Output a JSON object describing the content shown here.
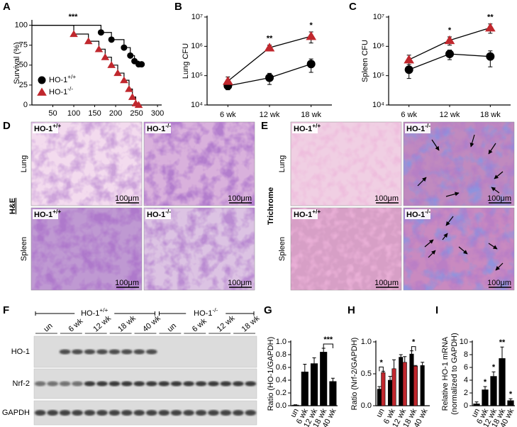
{
  "panel_labels": [
    "A",
    "B",
    "C",
    "D",
    "E",
    "F",
    "G",
    "H",
    "I"
  ],
  "chart_data": [
    {
      "type": "step",
      "ylabel": "Survival (%)",
      "annotation": "***",
      "xlim": [
        0,
        310
      ],
      "xticks": [
        50,
        100,
        150,
        200,
        250,
        300
      ],
      "ylim": [
        0,
        105
      ],
      "yticks": [
        0,
        25,
        50,
        75,
        100
      ],
      "series": [
        {
          "name": "HO-1+/+",
          "color": "#000000",
          "marker": "circle",
          "x": [
            0,
            165,
            190,
            220,
            235,
            245,
            255,
            262
          ],
          "values": [
            100,
            91,
            82,
            72,
            62,
            55,
            51,
            51
          ]
        },
        {
          "name": "HO-1-/-",
          "color": "#c0272d",
          "marker": "triangle",
          "x": [
            0,
            100,
            135,
            160,
            175,
            190,
            205,
            220,
            232,
            240,
            248,
            255
          ],
          "values": [
            100,
            89,
            80,
            70,
            60,
            50,
            40,
            31,
            20,
            10,
            2,
            0
          ]
        }
      ]
    },
    {
      "type": "line",
      "ylabel": "Lung CFU",
      "log": true,
      "categories": [
        "6 wk",
        "12 wk",
        "18 wk"
      ],
      "annotations": [
        null,
        "**",
        "*"
      ],
      "ylim": [
        10000,
        10000000
      ],
      "yticks": [
        {
          "value": 10000,
          "label": "10⁴"
        },
        {
          "value": 100000,
          "label": "10⁵"
        },
        {
          "value": 1000000,
          "label": "10⁶"
        },
        {
          "value": 10000000,
          "label": "10⁷"
        }
      ],
      "series": [
        {
          "color": "#000000",
          "marker": "circle",
          "values": [
            45000,
            85000,
            250000
          ],
          "errors": [
            12000,
            35000,
            120000
          ]
        },
        {
          "color": "#c0272d",
          "marker": "triangle",
          "values": [
            65000,
            900000,
            2200000
          ],
          "errors": [
            25000,
            200000,
            900000
          ]
        }
      ]
    },
    {
      "type": "line",
      "ylabel": "Spleen CFU",
      "log": true,
      "categories": [
        "6 wk",
        "12 wk",
        "18 wk"
      ],
      "annotations": [
        null,
        "*",
        "**"
      ],
      "ylim": [
        10000,
        10000000
      ],
      "yticks": [
        {
          "value": 10000,
          "label": "10⁴"
        },
        {
          "value": 100000,
          "label": "10⁵"
        },
        {
          "value": 1000000,
          "label": "10⁶"
        },
        {
          "value": 10000000,
          "label": "10⁷"
        }
      ],
      "series": [
        {
          "color": "#000000",
          "marker": "circle",
          "values": [
            160000,
            550000,
            450000
          ],
          "errors": [
            80000,
            200000,
            250000
          ]
        },
        {
          "color": "#c0272d",
          "marker": "triangle",
          "values": [
            350000,
            1600000,
            4300000
          ],
          "errors": [
            150000,
            500000,
            1500000
          ]
        }
      ]
    },
    {
      "type": "bar",
      "ylabel": "Ratio (HO-1/GAPDH)",
      "annotation_style": "bracket",
      "categories": [
        "un",
        "6 wk",
        "12 wk",
        "18 wk",
        "40 wk"
      ],
      "annotations": [
        null,
        null,
        null,
        "***",
        null
      ],
      "ylim": [
        0,
        1
      ],
      "yticks": [
        {
          "value": 0,
          "label": "0.0"
        },
        0.2,
        0.4,
        0.6,
        0.8,
        {
          "value": 1,
          "label": "1.0"
        }
      ],
      "series": [
        {
          "color": "#000000",
          "values": [
            0.01,
            0.53,
            0.66,
            0.84,
            0.38
          ],
          "errors": [
            0.005,
            0.12,
            0.09,
            0.06,
            0.05
          ]
        }
      ]
    },
    {
      "type": "bar",
      "ylabel": "Ratio (Nrf-2/GAPDH)",
      "annotation_style": "bracket",
      "categories": [
        "un",
        "6 wk",
        "12 wk",
        "18 wk",
        "40 wk"
      ],
      "annotations": [
        "*",
        null,
        null,
        "*",
        null
      ],
      "ylim": [
        0,
        1
      ],
      "yticks": [
        {
          "value": 0,
          "label": "0.0"
        },
        0.5,
        {
          "value": 1,
          "label": "1.0"
        }
      ],
      "series": [
        {
          "color": "#000000",
          "values": [
            0.26,
            0.4,
            0.76,
            0.81,
            0.63
          ],
          "errors": [
            0.04,
            0.06,
            0.04,
            0.05,
            0.05
          ]
        },
        {
          "color": "#c0272d",
          "values": [
            0.52,
            0.58,
            0.68,
            0.62,
            null
          ],
          "errors": [
            0.02,
            0.14,
            0.09,
            0.01,
            null
          ]
        }
      ]
    },
    {
      "type": "bar",
      "ylabel": "Relative HO-1 mRNA",
      "ysublabel": "(normalized to GAPDH)",
      "annotation_style": "star",
      "categories": [
        "un",
        "6 wk",
        "12 wk",
        "18 wk",
        "40 wk"
      ],
      "annotations": [
        null,
        "*",
        "*",
        "**",
        "*"
      ],
      "ylim": [
        0,
        10
      ],
      "yticks": [
        0,
        2,
        4,
        6,
        8,
        10
      ],
      "series": [
        {
          "color": "#000000",
          "values": [
            0.3,
            2.5,
            4.6,
            7.4,
            0.8
          ],
          "errors": [
            0.3,
            0.5,
            0.7,
            1.8,
            0.3
          ]
        }
      ]
    }
  ],
  "histology": [
    {
      "stain": "H&E",
      "rows": [
        "Lung",
        "Spleen"
      ],
      "genotypes": [
        "HO-1+/+",
        "HO-1-/-"
      ],
      "scale": "100μm"
    },
    {
      "stain": "Trichrome",
      "rows": [
        "Lung",
        "Spleen"
      ],
      "genotypes": [
        "HO-1+/+",
        "HO-1-/-"
      ],
      "scale": "100μm"
    }
  ],
  "blot": {
    "groups": [
      {
        "name": "HO-1+/+",
        "lanes": [
          "un",
          "6 wk",
          "12 wk",
          "18 wk",
          "40 wk"
        ]
      },
      {
        "name": "HO-1-/-",
        "lanes": [
          "un",
          "6 wk",
          "12 wk",
          "18 wk"
        ]
      }
    ],
    "rows": [
      "HO-1",
      "Nrf-2",
      "GAPDH"
    ]
  }
}
